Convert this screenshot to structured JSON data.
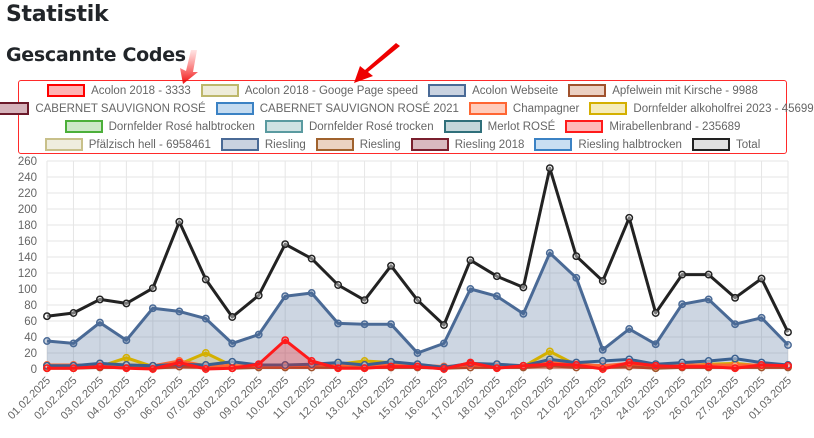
{
  "header": {
    "title": "Statistik",
    "subtitle": "Gescannte Codes"
  },
  "legend": {
    "rows": [
      [
        0,
        1,
        2,
        3
      ],
      [
        4,
        5,
        6,
        7
      ],
      [
        8,
        9,
        10,
        11
      ],
      [
        12,
        13,
        14,
        15,
        16,
        17
      ]
    ],
    "items": [
      {
        "label": "Acolon 2018 - 3333",
        "border": "#ff0000",
        "fill": "#ffb3b3"
      },
      {
        "label": "Acolon 2018 - Googe Page speed",
        "border": "#bdb76b",
        "fill": "#eeecd9"
      },
      {
        "label": "Acolon Webseite",
        "border": "#4a6a96",
        "fill": "#c9d2e0"
      },
      {
        "label": "Apfelwein mit Kirsche - 9988",
        "border": "#a0522d",
        "fill": "#ebd0c2"
      },
      {
        "label": "CABERNET SAUVIGNON ROSÉ",
        "border": "#6b1a2a",
        "fill": "#d6b3bb"
      },
      {
        "label": "CABERNET SAUVIGNON ROSÉ 2021",
        "border": "#3b82c4",
        "fill": "#c4dbf0"
      },
      {
        "label": "Champagner",
        "border": "#ff6633",
        "fill": "#ffccbb"
      },
      {
        "label": "Dornfelder alkoholfrei 2023 - 45699",
        "border": "#d4b000",
        "fill": "#f5ecbb"
      },
      {
        "label": "Dornfelder Rosé halbtrocken",
        "border": "#4caf3a",
        "fill": "#cde8c8"
      },
      {
        "label": "Dornfelder Rosé trocken",
        "border": "#5a9aa0",
        "fill": "#cfe2e3"
      },
      {
        "label": "Merlot ROSÉ",
        "border": "#2f6f7a",
        "fill": "#c3d6da"
      },
      {
        "label": "Mirabellenbrand - 235689",
        "border": "#ff1a1a",
        "fill": "#ffb8b8"
      },
      {
        "label": "Pfälzisch hell - 6958461",
        "border": "#c8c08a",
        "fill": "#efedde"
      },
      {
        "label": "Riesling",
        "border": "#4a6a96",
        "fill": "#c9d2e0"
      },
      {
        "label": "Riesling",
        "border": "#a0622d",
        "fill": "#ebd3c2"
      },
      {
        "label": "Riesling 2018",
        "border": "#7a1f2e",
        "fill": "#d9b8bf"
      },
      {
        "label": "Riesling halbtrocken",
        "border": "#3b82c4",
        "fill": "#c8def2"
      },
      {
        "label": "Total",
        "border": "#222222",
        "fill": "#e0e0e0"
      }
    ]
  },
  "chart_data": {
    "type": "line",
    "title": "Gescannte Codes",
    "xlabel": "",
    "ylabel": "",
    "ylim": [
      0,
      260
    ],
    "yticks": [
      0,
      20,
      40,
      60,
      80,
      100,
      120,
      140,
      160,
      180,
      200,
      220,
      240,
      260
    ],
    "grid": true,
    "legend_position": "top",
    "categories": [
      "01.02.2025",
      "02.02.2025",
      "03.02.2025",
      "04.02.2025",
      "05.02.2025",
      "06.02.2025",
      "07.02.2025",
      "08.02.2025",
      "09.02.2025",
      "10.02.2025",
      "11.02.2025",
      "12.02.2025",
      "13.02.2025",
      "14.02.2025",
      "15.02.2025",
      "16.02.2025",
      "17.02.2025",
      "18.02.2025",
      "19.02.2025",
      "20.02.2025",
      "21.02.2025",
      "22.02.2025",
      "23.02.2025",
      "24.02.2025",
      "25.02.2025",
      "26.02.2025",
      "27.02.2025",
      "28.02.2025",
      "01.03.2025"
    ],
    "series": [
      {
        "name": "Total",
        "color": "#222222",
        "fill": false,
        "values": [
          66,
          70,
          87,
          82,
          101,
          184,
          112,
          65,
          92,
          156,
          138,
          105,
          86,
          129,
          86,
          55,
          136,
          116,
          102,
          251,
          141,
          110,
          189,
          70,
          118,
          118,
          89,
          113,
          46
        ]
      },
      {
        "name": "Riesling",
        "color": "#4a6a96",
        "fill": "rgba(74,106,150,0.28)",
        "values": [
          35,
          32,
          58,
          36,
          76,
          72,
          63,
          32,
          43,
          91,
          95,
          57,
          56,
          56,
          20,
          32,
          100,
          91,
          69,
          145,
          114,
          24,
          50,
          31,
          81,
          87,
          56,
          64,
          30
        ]
      },
      {
        "name": "Merlot ROSÉ",
        "color": "#3a6090",
        "fill": false,
        "values": [
          4,
          4,
          7,
          5,
          4,
          6,
          5,
          9,
          5,
          5,
          6,
          8,
          5,
          9,
          6,
          2,
          7,
          6,
          4,
          12,
          8,
          10,
          12,
          6,
          8,
          10,
          13,
          8,
          5
        ]
      },
      {
        "name": "Dornfelder alkoholfrei 2023 - 45699",
        "color": "#d4b000",
        "fill": "rgba(212,176,0,0.2)",
        "values": [
          2,
          2,
          3,
          14,
          3,
          6,
          20,
          4,
          3,
          3,
          5,
          6,
          10,
          8,
          5,
          2,
          6,
          4,
          3,
          22,
          5,
          3,
          5,
          3,
          4,
          6,
          7,
          4,
          3
        ]
      },
      {
        "name": "Champagner",
        "color": "#ff6633",
        "fill": false,
        "values": [
          5,
          5,
          5,
          5,
          4,
          10,
          4,
          4,
          4,
          4,
          5,
          5,
          5,
          5,
          5,
          3,
          5,
          4,
          4,
          8,
          6,
          4,
          7,
          4,
          5,
          5,
          5,
          5,
          4
        ]
      },
      {
        "name": "Apfelwein mit Kirsche - 9988",
        "color": "#a0522d",
        "fill": false,
        "values": [
          1,
          1,
          2,
          2,
          1,
          3,
          2,
          1,
          2,
          2,
          2,
          2,
          2,
          2,
          2,
          1,
          2,
          2,
          2,
          4,
          2,
          2,
          3,
          1,
          2,
          2,
          2,
          2,
          2
        ]
      },
      {
        "name": "Mirabellenbrand - 235689",
        "color": "#ff1a1a",
        "fill": "rgba(255,26,26,0.28)",
        "values": [
          1,
          1,
          3,
          1,
          0,
          8,
          0,
          1,
          6,
          36,
          10,
          1,
          1,
          3,
          3,
          0,
          8,
          1,
          4,
          6,
          5,
          0,
          8,
          4,
          3,
          3,
          1,
          5,
          4
        ]
      }
    ]
  }
}
